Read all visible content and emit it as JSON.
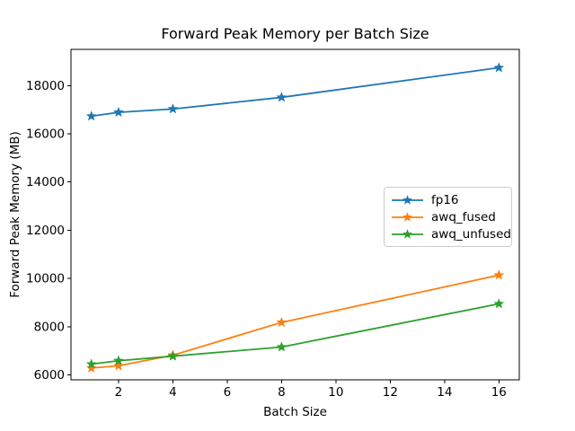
{
  "figure": {
    "background": "#ffffff",
    "text_color": "#000000",
    "axis_color": "#000000",
    "legend_border_color": "#cccccc"
  },
  "chart_data": {
    "type": "line",
    "title": "Forward Peak Memory per Batch Size",
    "xlabel": "Batch Size",
    "ylabel": "Forward Peak Memory (MB)",
    "x": [
      1,
      2,
      4,
      8,
      16
    ],
    "series": [
      {
        "name": "fp16",
        "color": "#1f77b4",
        "values": [
          16730,
          16890,
          17030,
          17510,
          18740
        ]
      },
      {
        "name": "awq_fused",
        "color": "#ff7f0e",
        "values": [
          6290,
          6380,
          6820,
          8180,
          10140
        ]
      },
      {
        "name": "awq_unfused",
        "color": "#2ca02c",
        "values": [
          6450,
          6590,
          6780,
          7160,
          8950
        ]
      }
    ],
    "x_ticks": [
      2,
      4,
      6,
      8,
      10,
      12,
      14,
      16
    ],
    "y_ticks": [
      6000,
      8000,
      10000,
      12000,
      14000,
      16000,
      18000
    ],
    "xlim": [
      0.25,
      16.75
    ],
    "ylim": [
      5800,
      19500
    ],
    "marker": "star",
    "grid": false,
    "legend_position": "center-right"
  }
}
